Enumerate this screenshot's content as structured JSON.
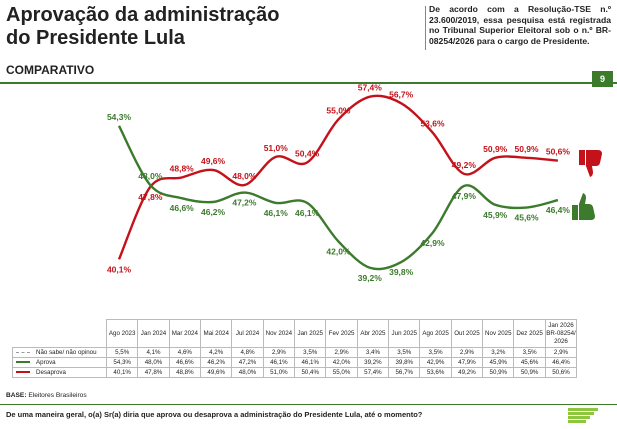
{
  "header": {
    "title_line1": "Aprovação da administração",
    "title_line2": "do Presidente Lula",
    "subtitle": "COMPARATIVO",
    "note": "De acordo com a Resolução-TSE n.º 23.600/2019, essa pesquisa está registrada no Tribunal Superior Eleitoral sob o n.º BR-08254/2026 para o cargo de Presidente.",
    "page_number": "9"
  },
  "chart_data": {
    "type": "line",
    "categories": [
      "Ago 2023",
      "Jan 2024",
      "Mar 2024",
      "Mai 2024",
      "Jul 2024",
      "Nov 2024",
      "Jan 2025",
      "Fev 2025",
      "Abr 2025",
      "Jun 2025",
      "Ago 2025",
      "Out 2025",
      "Nov 2025",
      "Dez 2025",
      "Jan 2026 BR-08254/ 2026"
    ],
    "series": [
      {
        "name": "Não sabe/ não opinou",
        "values": [
          5.5,
          4.1,
          4.6,
          4.2,
          4.8,
          2.9,
          3.5,
          2.9,
          3.4,
          3.5,
          3.5,
          2.9,
          3.2,
          3.5,
          2.9
        ],
        "labels": [
          "5,5%",
          "4,1%",
          "4,6%",
          "4,2%",
          "4,8%",
          "2,9%",
          "3,5%",
          "2,9%",
          "3,4%",
          "3,5%",
          "3,5%",
          "2,9%",
          "3,2%",
          "3,5%",
          "2,9%"
        ],
        "color": "#999999",
        "plotted": false
      },
      {
        "name": "Aprova",
        "values": [
          54.3,
          48.0,
          46.6,
          46.2,
          47.2,
          46.1,
          46.1,
          42.0,
          39.2,
          39.8,
          42.9,
          47.9,
          45.9,
          45.6,
          46.4
        ],
        "labels": [
          "54,3%",
          "48,0%",
          "46,6%",
          "46,2%",
          "47,2%",
          "46,1%",
          "46,1%",
          "42,0%",
          "39,2%",
          "39,8%",
          "42,9%",
          "47,9%",
          "45,9%",
          "45,6%",
          "46,4%"
        ],
        "color": "#3c7a2c",
        "plotted": true
      },
      {
        "name": "Desaprova",
        "values": [
          40.1,
          47.8,
          48.8,
          49.6,
          48.0,
          51.0,
          50.4,
          55.0,
          57.4,
          56.7,
          53.6,
          49.2,
          50.9,
          50.9,
          50.6
        ],
        "labels": [
          "40,1%",
          "47,8%",
          "48,8%",
          "49,6%",
          "48,0%",
          "51,0%",
          "50,4%",
          "55,0%",
          "57,4%",
          "56,7%",
          "53,6%",
          "49,2%",
          "50,9%",
          "50,9%",
          "50,6%"
        ],
        "color": "#c4121a",
        "plotted": true
      }
    ],
    "title": "",
    "xlabel": "",
    "ylabel": "",
    "grid": false
  },
  "icons": {
    "thumb_down": "thumbs-down-icon",
    "thumb_up": "thumbs-up-icon",
    "logo": "institute-logo-icon"
  },
  "footer": {
    "base_label": "BASE:",
    "base_text": "Eleitores Brasileiros",
    "question": "De uma maneira geral, o(a) Sr(a) diria que aprova ou desaprova a administração do Presidente Lula, até o momento?"
  }
}
